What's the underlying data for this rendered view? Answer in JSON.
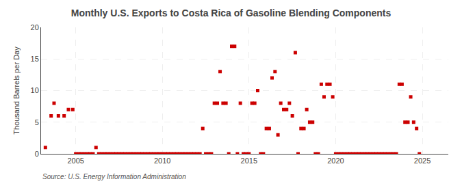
{
  "chart_data": {
    "type": "scatter",
    "title": "Monthly U.S. Exports to Costa Rica of Gasoline Blending Components",
    "ylabel": "Thousand Barrels per Day",
    "annotations": [
      "Source: U.S. Energy Information Administration"
    ],
    "color": "#cc0000",
    "marker": "square",
    "grid": true,
    "xlim": [
      2003.0,
      2026.5
    ],
    "ylim": [
      0,
      20
    ],
    "xticks": [
      2005,
      2010,
      2015,
      2020,
      2025
    ],
    "yticks": [
      0,
      5,
      10,
      15,
      20
    ],
    "x": [
      2003.25,
      2003.58,
      2003.75,
      2004.0,
      2004.33,
      2004.58,
      2004.83,
      2005.0,
      2005.17,
      2005.33,
      2005.5,
      2005.67,
      2005.83,
      2006.0,
      2006.17,
      2006.33,
      2006.5,
      2006.67,
      2006.83,
      2007.0,
      2007.17,
      2007.33,
      2007.5,
      2007.67,
      2007.83,
      2008.0,
      2008.17,
      2008.33,
      2008.5,
      2008.67,
      2008.83,
      2009.0,
      2009.17,
      2009.33,
      2009.5,
      2009.67,
      2009.83,
      2010.0,
      2010.17,
      2010.33,
      2010.5,
      2010.67,
      2010.83,
      2011.0,
      2011.17,
      2011.33,
      2011.5,
      2011.67,
      2011.83,
      2012.0,
      2012.17,
      2012.33,
      2012.5,
      2012.67,
      2012.83,
      2013.0,
      2013.17,
      2013.33,
      2013.5,
      2013.67,
      2013.83,
      2014.0,
      2014.17,
      2014.33,
      2014.5,
      2014.67,
      2014.83,
      2015.0,
      2015.17,
      2015.33,
      2015.5,
      2015.67,
      2015.83,
      2016.0,
      2016.17,
      2016.33,
      2016.5,
      2016.67,
      2016.83,
      2017.0,
      2017.17,
      2017.33,
      2017.5,
      2017.67,
      2017.83,
      2018.0,
      2018.17,
      2018.33,
      2018.5,
      2018.67,
      2018.83,
      2019.0,
      2019.17,
      2019.33,
      2019.5,
      2019.67,
      2019.83,
      2020.0,
      2020.17,
      2020.33,
      2020.5,
      2020.67,
      2020.83,
      2021.0,
      2021.17,
      2021.33,
      2021.5,
      2021.67,
      2021.83,
      2022.0,
      2022.17,
      2022.33,
      2022.5,
      2022.67,
      2022.83,
      2023.0,
      2023.17,
      2023.33,
      2023.5,
      2023.67,
      2023.83,
      2024.0,
      2024.17,
      2024.33,
      2024.5,
      2024.67,
      2024.83
    ],
    "values": [
      1.0,
      6.0,
      8.0,
      6.0,
      6.0,
      7.0,
      7.0,
      0.0,
      0.0,
      0.0,
      0.0,
      0.0,
      0.0,
      0.0,
      1.0,
      0.0,
      0.0,
      0.0,
      0.0,
      0.0,
      0.0,
      0.0,
      0.0,
      0.0,
      0.0,
      0.0,
      0.0,
      0.0,
      0.0,
      0.0,
      0.0,
      0.0,
      0.0,
      0.0,
      0.0,
      0.0,
      0.0,
      0.0,
      0.0,
      0.0,
      0.0,
      0.0,
      0.0,
      0.0,
      0.0,
      0.0,
      0.0,
      0.0,
      0.0,
      0.0,
      0.0,
      4.0,
      0.0,
      0.0,
      0.0,
      8.0,
      8.0,
      13.0,
      8.0,
      8.0,
      0.0,
      17.0,
      17.0,
      0.0,
      8.0,
      0.0,
      0.0,
      0.0,
      8.0,
      8.0,
      10.0,
      0.0,
      0.0,
      4.0,
      4.0,
      12.0,
      13.0,
      3.0,
      8.0,
      7.0,
      7.0,
      8.0,
      6.0,
      16.0,
      0.0,
      4.0,
      4.0,
      7.0,
      5.0,
      5.0,
      0.0,
      0.0,
      11.0,
      9.0,
      11.0,
      11.0,
      9.0,
      0.0,
      0.0,
      0.0,
      0.0,
      0.0,
      0.0,
      0.0,
      0.0,
      0.0,
      0.0,
      0.0,
      0.0,
      0.0,
      0.0,
      0.0,
      0.0,
      0.0,
      0.0,
      0.0,
      0.0,
      0.0,
      0.0,
      11.0,
      11.0,
      5.0,
      5.0,
      9.0,
      5.0,
      4.0,
      0.0
    ]
  }
}
